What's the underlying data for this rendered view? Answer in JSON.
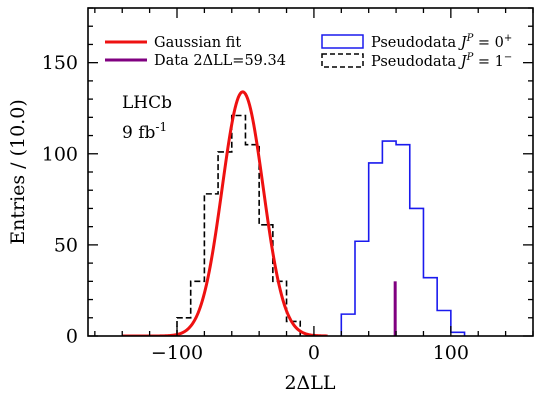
{
  "chart_data": {
    "type": "histogram",
    "xlabel": "2ΔLL",
    "ylabel": "Entries / (10.0)",
    "xlim": [
      -165,
      160
    ],
    "ylim": [
      0,
      180
    ],
    "x_ticks": [
      -100,
      0,
      100
    ],
    "x_tick_labels": [
      "−100",
      "0",
      "100"
    ],
    "y_ticks": [
      0,
      50,
      100,
      150
    ],
    "y_tick_labels": [
      "0",
      "50",
      "100",
      "150"
    ],
    "annotations": [
      "LHCb",
      "9 fb",
      "-1"
    ],
    "legend": [
      {
        "label": "Gaussian fit",
        "style": "line",
        "color": "#ee1111"
      },
      {
        "label": "Data 2ΔLL=59.34",
        "style": "line",
        "color": "#800080"
      },
      {
        "label": "Pseudodata ",
        "sup_label": "J",
        "sup_p": "P",
        "suffix": " = 0",
        "sup_sign": "+",
        "style": "box",
        "color": "#1a1aee"
      },
      {
        "label": "Pseudodata ",
        "sup_label": "J",
        "sup_p": "P",
        "suffix": " = 1",
        "sup_sign": "−",
        "style": "dashedbox",
        "color": "#000000"
      }
    ],
    "series": [
      {
        "name": "Pseudodata JP=1−",
        "kind": "step-dashed",
        "color": "#000000",
        "bin_edges": [
          -100,
          -90,
          -80,
          -70,
          -60,
          -50,
          -40,
          -30,
          -20,
          -10
        ],
        "counts": [
          10,
          30,
          78,
          101,
          121,
          105,
          61,
          30,
          8
        ]
      },
      {
        "name": "Pseudodata JP=0+",
        "kind": "step",
        "color": "#1a1aee",
        "bin_edges": [
          20,
          30,
          40,
          50,
          60,
          70,
          80,
          90,
          100,
          110
        ],
        "counts": [
          12,
          52,
          95,
          107,
          105,
          70,
          32,
          14,
          2
        ]
      },
      {
        "name": "Gaussian fit",
        "kind": "gaussian",
        "color": "#ee1111",
        "amplitude": 134,
        "mean": -52,
        "sigma": 15,
        "x_range": [
          -140,
          10
        ]
      },
      {
        "name": "Data 2ΔLL=59.34",
        "kind": "vline",
        "color": "#800080",
        "x": 59.34,
        "y_top": 30
      }
    ]
  }
}
